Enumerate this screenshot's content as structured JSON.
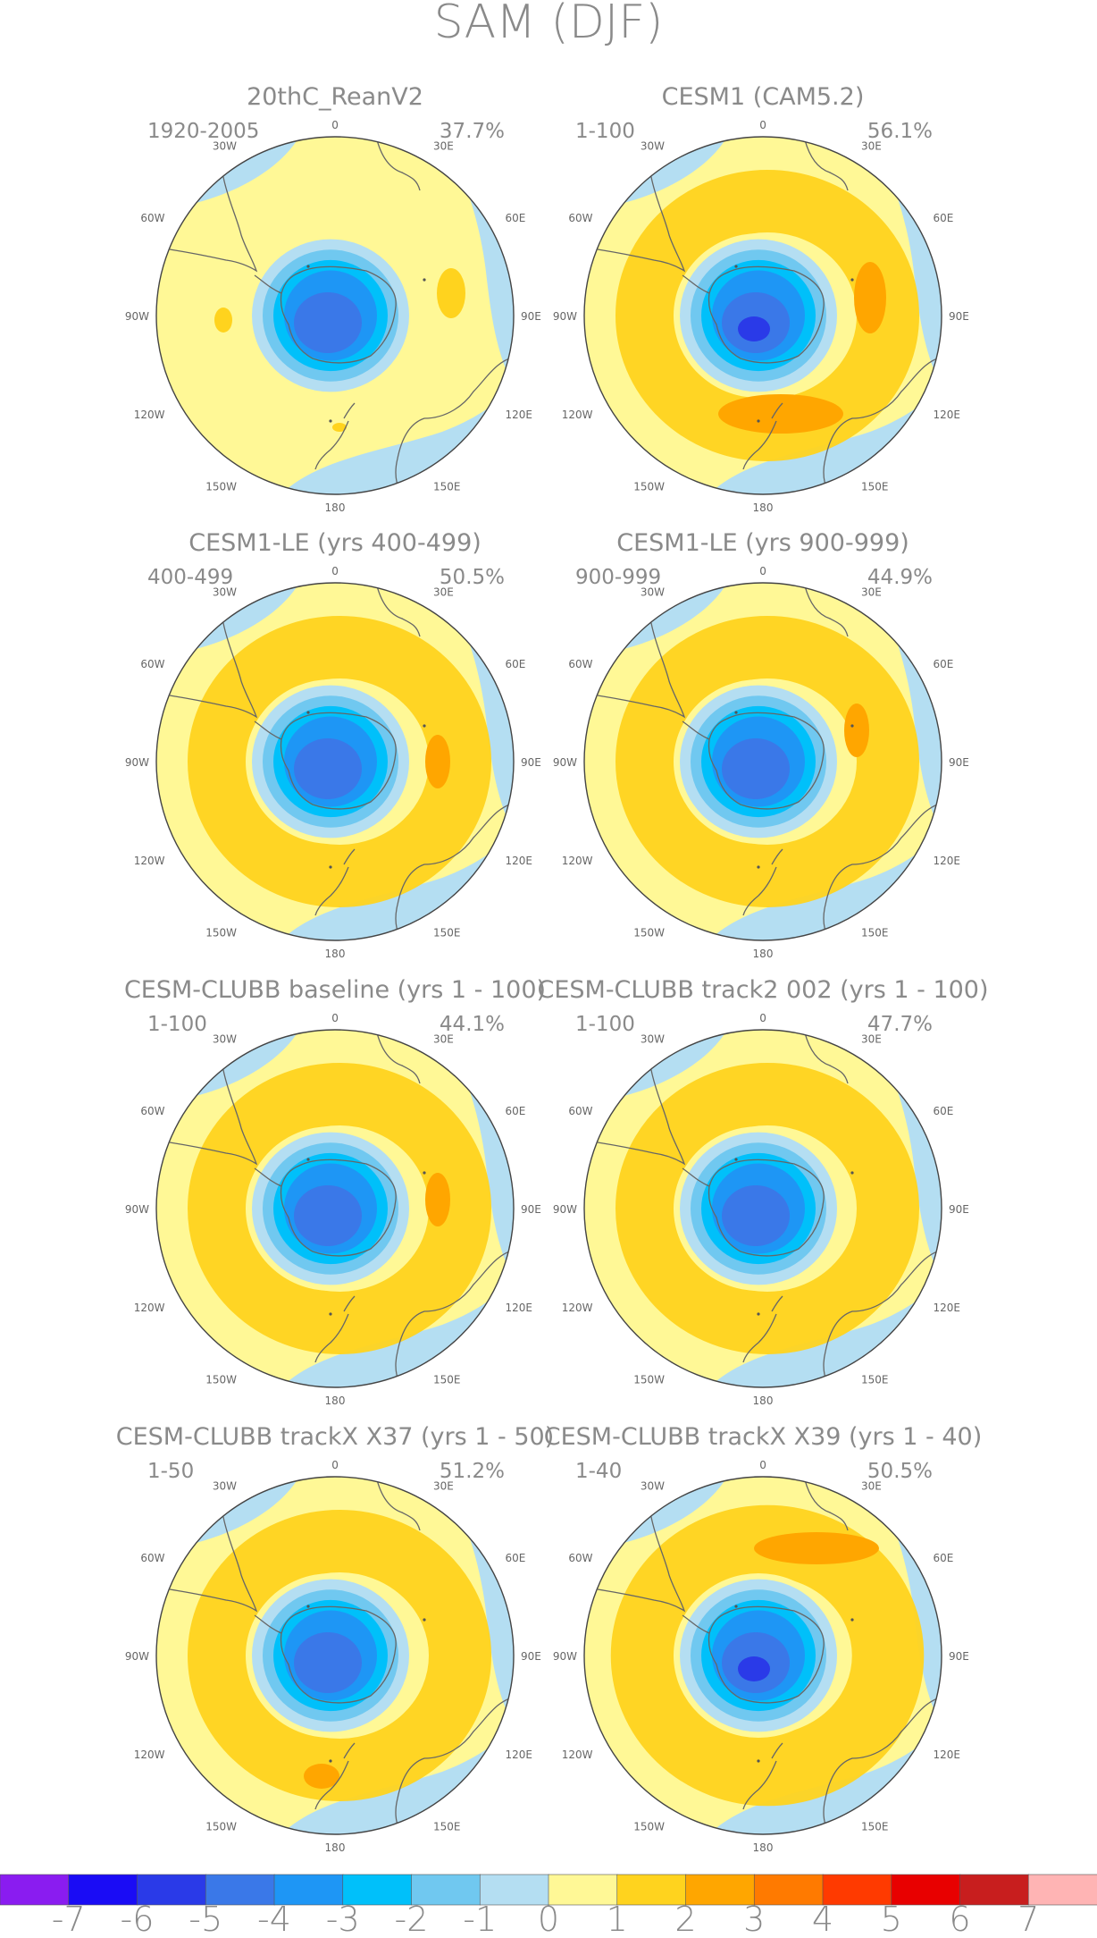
{
  "title": "SAM (DJF)",
  "longitude_labels": [
    "0",
    "30E",
    "60E",
    "90E",
    "120E",
    "150E",
    "180",
    "150W",
    "120W",
    "90W",
    "60W",
    "30W"
  ],
  "panels": [
    {
      "title": "20thC_ReanV2",
      "period": "1920-2005",
      "variance": "37.7%"
    },
    {
      "title": "CESM1 (CAM5.2)",
      "period": "1-100",
      "variance": "56.1%"
    },
    {
      "title": "CESM1-LE (yrs 400-499)",
      "period": "400-499",
      "variance": "50.5%"
    },
    {
      "title": "CESM1-LE (yrs 900-999)",
      "period": "900-999",
      "variance": "44.9%"
    },
    {
      "title": "CESM-CLUBB baseline (yrs 1 - 100)",
      "period": "1-100",
      "variance": "44.1%"
    },
    {
      "title": "CESM-CLUBB track2 002 (yrs 1 - 100)",
      "period": "1-100",
      "variance": "47.7%"
    },
    {
      "title": "CESM-CLUBB trackX X37 (yrs 1 - 50)",
      "period": "1-50",
      "variance": "51.2%"
    },
    {
      "title": "CESM-CLUBB trackX X39 (yrs 1 - 40)",
      "period": "1-40",
      "variance": "50.5%"
    }
  ],
  "colorbar": {
    "labels": [
      "-7",
      "-6",
      "-5",
      "-4",
      "-3",
      "-2",
      "-1",
      "0",
      "1",
      "2",
      "3",
      "4",
      "5",
      "6",
      "7"
    ],
    "colors": [
      "#8a1cf0",
      "#1a0cf5",
      "#2a3ae8",
      "#3a78e8",
      "#1e96f5",
      "#00c0fa",
      "#70c8f0",
      "#b4def2",
      "#fff896",
      "#ffd31e",
      "#ffa600",
      "#ff7a00",
      "#ff3a00",
      "#e80000",
      "#c81e1e",
      "#ffb4b4"
    ]
  },
  "palette": {
    "yellow": "#fff896",
    "light_blue": "#b4def2",
    "blue_mid": "#00c0fa",
    "orange": "#ffd31e",
    "dark_orange": "#ffa600"
  }
}
